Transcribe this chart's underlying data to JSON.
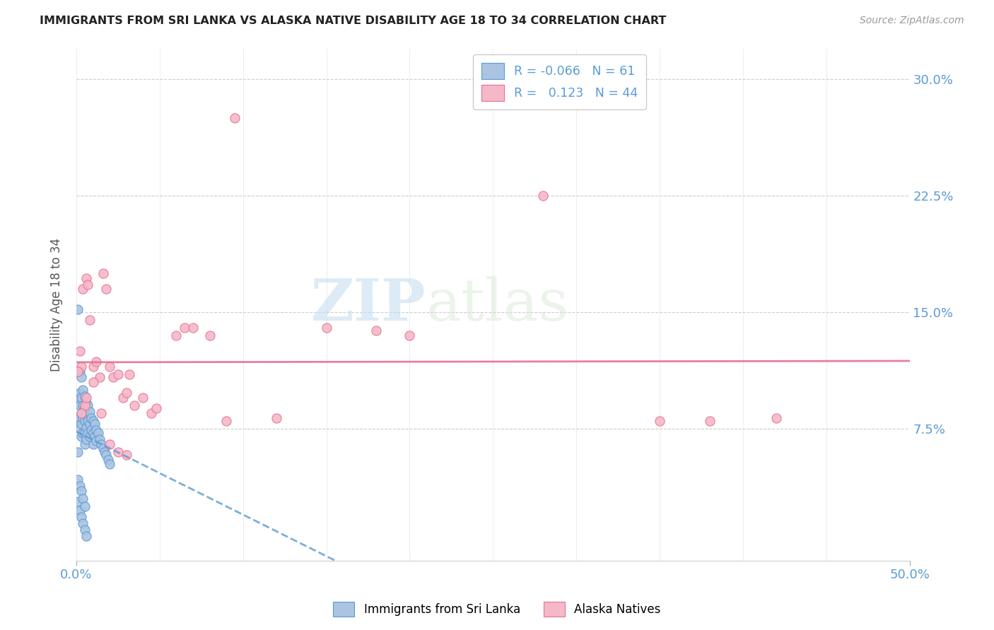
{
  "title": "IMMIGRANTS FROM SRI LANKA VS ALASKA NATIVE DISABILITY AGE 18 TO 34 CORRELATION CHART",
  "source": "Source: ZipAtlas.com",
  "ylabel": "Disability Age 18 to 34",
  "xlim": [
    0.0,
    0.5
  ],
  "ylim": [
    -0.01,
    0.32
  ],
  "x_ticks": [
    0.0,
    0.5
  ],
  "x_tick_labels": [
    "0.0%",
    "50.0%"
  ],
  "y_ticks": [
    0.075,
    0.15,
    0.225,
    0.3
  ],
  "y_tick_labels": [
    "7.5%",
    "15.0%",
    "22.5%",
    "30.0%"
  ],
  "legend_R1": "-0.066",
  "legend_N1": "61",
  "legend_R2": "0.123",
  "legend_N2": "44",
  "color_blue_fill": "#aac4e2",
  "color_blue_edge": "#5b9bd5",
  "color_pink_fill": "#f5b8c8",
  "color_pink_edge": "#e87090",
  "color_blue_line": "#5b9bd5",
  "color_pink_line": "#e87090",
  "color_axis": "#5b9bd5",
  "watermark_zip": "ZIP",
  "watermark_atlas": "atlas",
  "sri_lanka_x": [
    0.001,
    0.001,
    0.001,
    0.001,
    0.002,
    0.002,
    0.002,
    0.002,
    0.002,
    0.003,
    0.003,
    0.003,
    0.003,
    0.003,
    0.004,
    0.004,
    0.004,
    0.004,
    0.005,
    0.005,
    0.005,
    0.005,
    0.005,
    0.006,
    0.006,
    0.006,
    0.006,
    0.007,
    0.007,
    0.007,
    0.008,
    0.008,
    0.008,
    0.009,
    0.009,
    0.01,
    0.01,
    0.01,
    0.011,
    0.011,
    0.012,
    0.012,
    0.013,
    0.014,
    0.015,
    0.016,
    0.017,
    0.018,
    0.019,
    0.02,
    0.001,
    0.001,
    0.002,
    0.002,
    0.003,
    0.003,
    0.004,
    0.004,
    0.005,
    0.005,
    0.006
  ],
  "sri_lanka_y": [
    0.152,
    0.095,
    0.08,
    0.06,
    0.112,
    0.098,
    0.09,
    0.082,
    0.075,
    0.108,
    0.095,
    0.085,
    0.078,
    0.07,
    0.1,
    0.09,
    0.082,
    0.072,
    0.096,
    0.088,
    0.08,
    0.072,
    0.065,
    0.092,
    0.084,
    0.076,
    0.068,
    0.09,
    0.08,
    0.072,
    0.086,
    0.078,
    0.07,
    0.082,
    0.074,
    0.08,
    0.072,
    0.065,
    0.078,
    0.07,
    0.074,
    0.067,
    0.072,
    0.068,
    0.065,
    0.062,
    0.06,
    0.058,
    0.055,
    0.052,
    0.042,
    0.028,
    0.038,
    0.022,
    0.035,
    0.018,
    0.03,
    0.014,
    0.025,
    0.01,
    0.006
  ],
  "alaska_x": [
    0.002,
    0.003,
    0.004,
    0.005,
    0.006,
    0.007,
    0.008,
    0.01,
    0.012,
    0.014,
    0.016,
    0.018,
    0.02,
    0.022,
    0.025,
    0.028,
    0.03,
    0.032,
    0.035,
    0.04,
    0.045,
    0.048,
    0.06,
    0.065,
    0.07,
    0.08,
    0.09,
    0.095,
    0.12,
    0.15,
    0.18,
    0.2,
    0.28,
    0.35,
    0.38,
    0.42,
    0.001,
    0.003,
    0.006,
    0.01,
    0.015,
    0.02,
    0.025,
    0.03
  ],
  "alaska_y": [
    0.125,
    0.115,
    0.165,
    0.09,
    0.172,
    0.168,
    0.145,
    0.115,
    0.118,
    0.108,
    0.175,
    0.165,
    0.115,
    0.108,
    0.11,
    0.095,
    0.098,
    0.11,
    0.09,
    0.095,
    0.085,
    0.088,
    0.135,
    0.14,
    0.14,
    0.135,
    0.08,
    0.275,
    0.082,
    0.14,
    0.138,
    0.135,
    0.225,
    0.08,
    0.08,
    0.082,
    0.112,
    0.085,
    0.095,
    0.105,
    0.085,
    0.065,
    0.06,
    0.058
  ]
}
